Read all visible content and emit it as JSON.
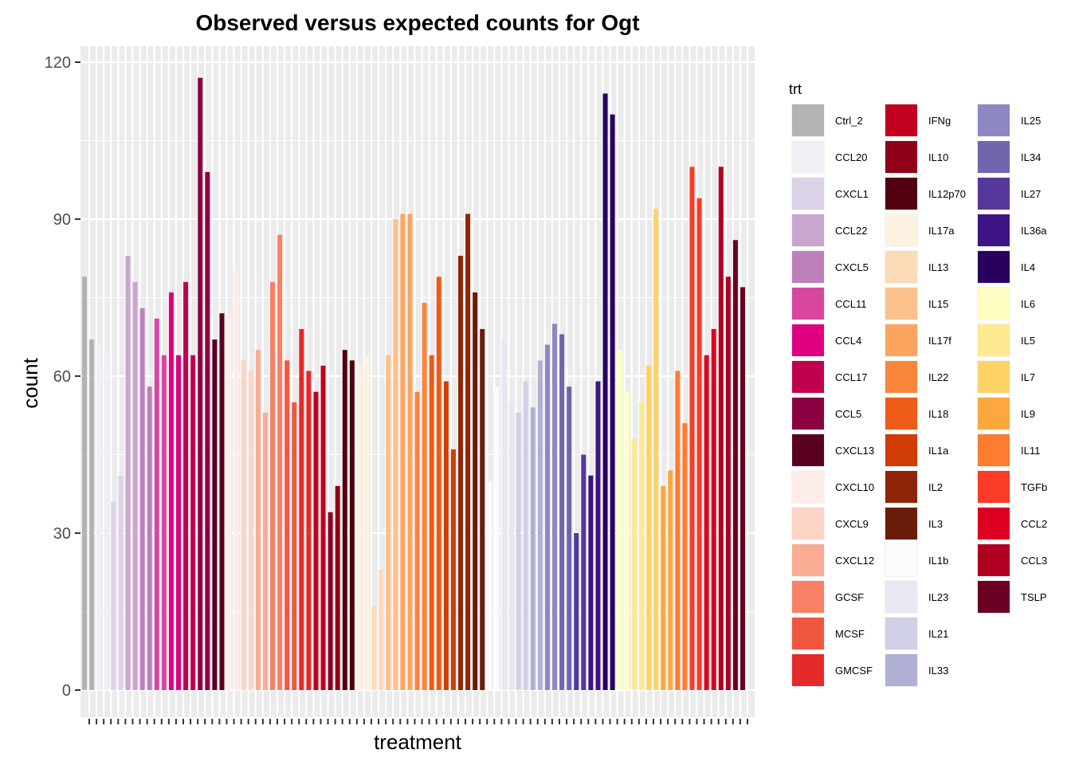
{
  "chart_data": {
    "type": "bar",
    "title": "Observed versus expected counts for Ogt",
    "xlabel": "treatment",
    "ylabel": "count",
    "ylim": [
      -5,
      125
    ],
    "yticks": [
      0,
      30,
      60,
      90,
      120
    ],
    "grid": true,
    "legend": {
      "title": "trt",
      "position": "right",
      "columns": 3
    },
    "treatments": [
      {
        "name": "Ctrl_2",
        "color": "#b3b3b3",
        "values": [
          79,
          67
        ]
      },
      {
        "name": "CCL20",
        "color": "#f1eef5",
        "values": [
          66,
          64
        ]
      },
      {
        "name": "CXCL1",
        "color": "#dcd3e8",
        "values": [
          36,
          41
        ]
      },
      {
        "name": "CCL22",
        "color": "#c9a6d0",
        "values": [
          83,
          78
        ]
      },
      {
        "name": "CXCL5",
        "color": "#bd80bb",
        "values": [
          73,
          58
        ]
      },
      {
        "name": "CCL11",
        "color": "#d946a0",
        "values": [
          71,
          64
        ]
      },
      {
        "name": "CCL4",
        "color": "#df0081",
        "values": [
          76,
          64
        ]
      },
      {
        "name": "CCL17",
        "color": "#c0004f",
        "values": [
          78,
          64
        ]
      },
      {
        "name": "CCL5",
        "color": "#8c0042",
        "values": [
          117,
          99
        ]
      },
      {
        "name": "CXCL13",
        "color": "#5a0021",
        "values": [
          67,
          72
        ]
      },
      {
        "name": "CXCL10",
        "color": "#fcede9",
        "values": [
          72,
          80
        ]
      },
      {
        "name": "CXCL9",
        "color": "#fdd5c7",
        "values": [
          63,
          61
        ]
      },
      {
        "name": "CXCL12",
        "color": "#faac94",
        "values": [
          65,
          53
        ]
      },
      {
        "name": "GCSF",
        "color": "#f78065",
        "values": [
          78,
          87
        ]
      },
      {
        "name": "MCSF",
        "color": "#f15740",
        "values": [
          63,
          55
        ]
      },
      {
        "name": "GMCSF",
        "color": "#e5292a",
        "values": [
          69,
          61
        ]
      },
      {
        "name": "IFNg",
        "color": "#c1001f",
        "values": [
          57,
          62
        ]
      },
      {
        "name": "IL10",
        "color": "#8f0019",
        "values": [
          34,
          39
        ]
      },
      {
        "name": "IL12p70",
        "color": "#52000f",
        "values": [
          65,
          63
        ]
      },
      {
        "name": "IL17a",
        "color": "#fdf1e2",
        "values": [
          62,
          64
        ]
      },
      {
        "name": "IL13",
        "color": "#fcdbb9",
        "values": [
          16,
          23
        ]
      },
      {
        "name": "IL15",
        "color": "#fcc18c",
        "values": [
          64,
          90
        ]
      },
      {
        "name": "IL17f",
        "color": "#fba561",
        "values": [
          91,
          91
        ]
      },
      {
        "name": "IL22",
        "color": "#f9863a",
        "values": [
          57,
          74
        ]
      },
      {
        "name": "IL18",
        "color": "#ed5b17",
        "values": [
          64,
          79
        ]
      },
      {
        "name": "IL1a",
        "color": "#d13b04",
        "values": [
          59,
          46
        ]
      },
      {
        "name": "IL2",
        "color": "#8f2507",
        "values": [
          83,
          91
        ]
      },
      {
        "name": "IL3",
        "color": "#6b1b09",
        "values": [
          76,
          69
        ]
      },
      {
        "name": "IL1b",
        "color": "#fbfbfd",
        "values": [
          40,
          58
        ]
      },
      {
        "name": "IL23",
        "color": "#e9e7f1",
        "values": [
          67,
          55
        ]
      },
      {
        "name": "IL21",
        "color": "#d0d0e6",
        "values": [
          53,
          59
        ]
      },
      {
        "name": "IL33",
        "color": "#b0b0d5",
        "values": [
          54,
          63
        ]
      },
      {
        "name": "IL25",
        "color": "#8d88c1",
        "values": [
          66,
          70
        ]
      },
      {
        "name": "IL34",
        "color": "#6f66ad",
        "values": [
          68,
          58
        ]
      },
      {
        "name": "IL27",
        "color": "#56379b",
        "values": [
          30,
          45
        ]
      },
      {
        "name": "IL36a",
        "color": "#3e1383",
        "values": [
          41,
          59
        ]
      },
      {
        "name": "IL4",
        "color": "#290060",
        "values": [
          114,
          110
        ]
      },
      {
        "name": "IL6",
        "color": "#ffffc4",
        "values": [
          65,
          57
        ]
      },
      {
        "name": "IL5",
        "color": "#ffe991",
        "values": [
          48,
          55
        ]
      },
      {
        "name": "IL7",
        "color": "#fed366",
        "values": [
          62,
          92
        ]
      },
      {
        "name": "IL9",
        "color": "#fea73e",
        "values": [
          39,
          42
        ]
      },
      {
        "name": "IL11",
        "color": "#fd7c2f",
        "values": [
          61,
          51
        ]
      },
      {
        "name": "TGFb",
        "color": "#fb3b27",
        "values": [
          100,
          94
        ]
      },
      {
        "name": "CCL2",
        "color": "#de0020",
        "values": [
          64,
          69
        ]
      },
      {
        "name": "CCL3",
        "color": "#b00022",
        "values": [
          100,
          79
        ]
      },
      {
        "name": "TSLP",
        "color": "#6b0022",
        "values": [
          86,
          77
        ]
      }
    ]
  }
}
